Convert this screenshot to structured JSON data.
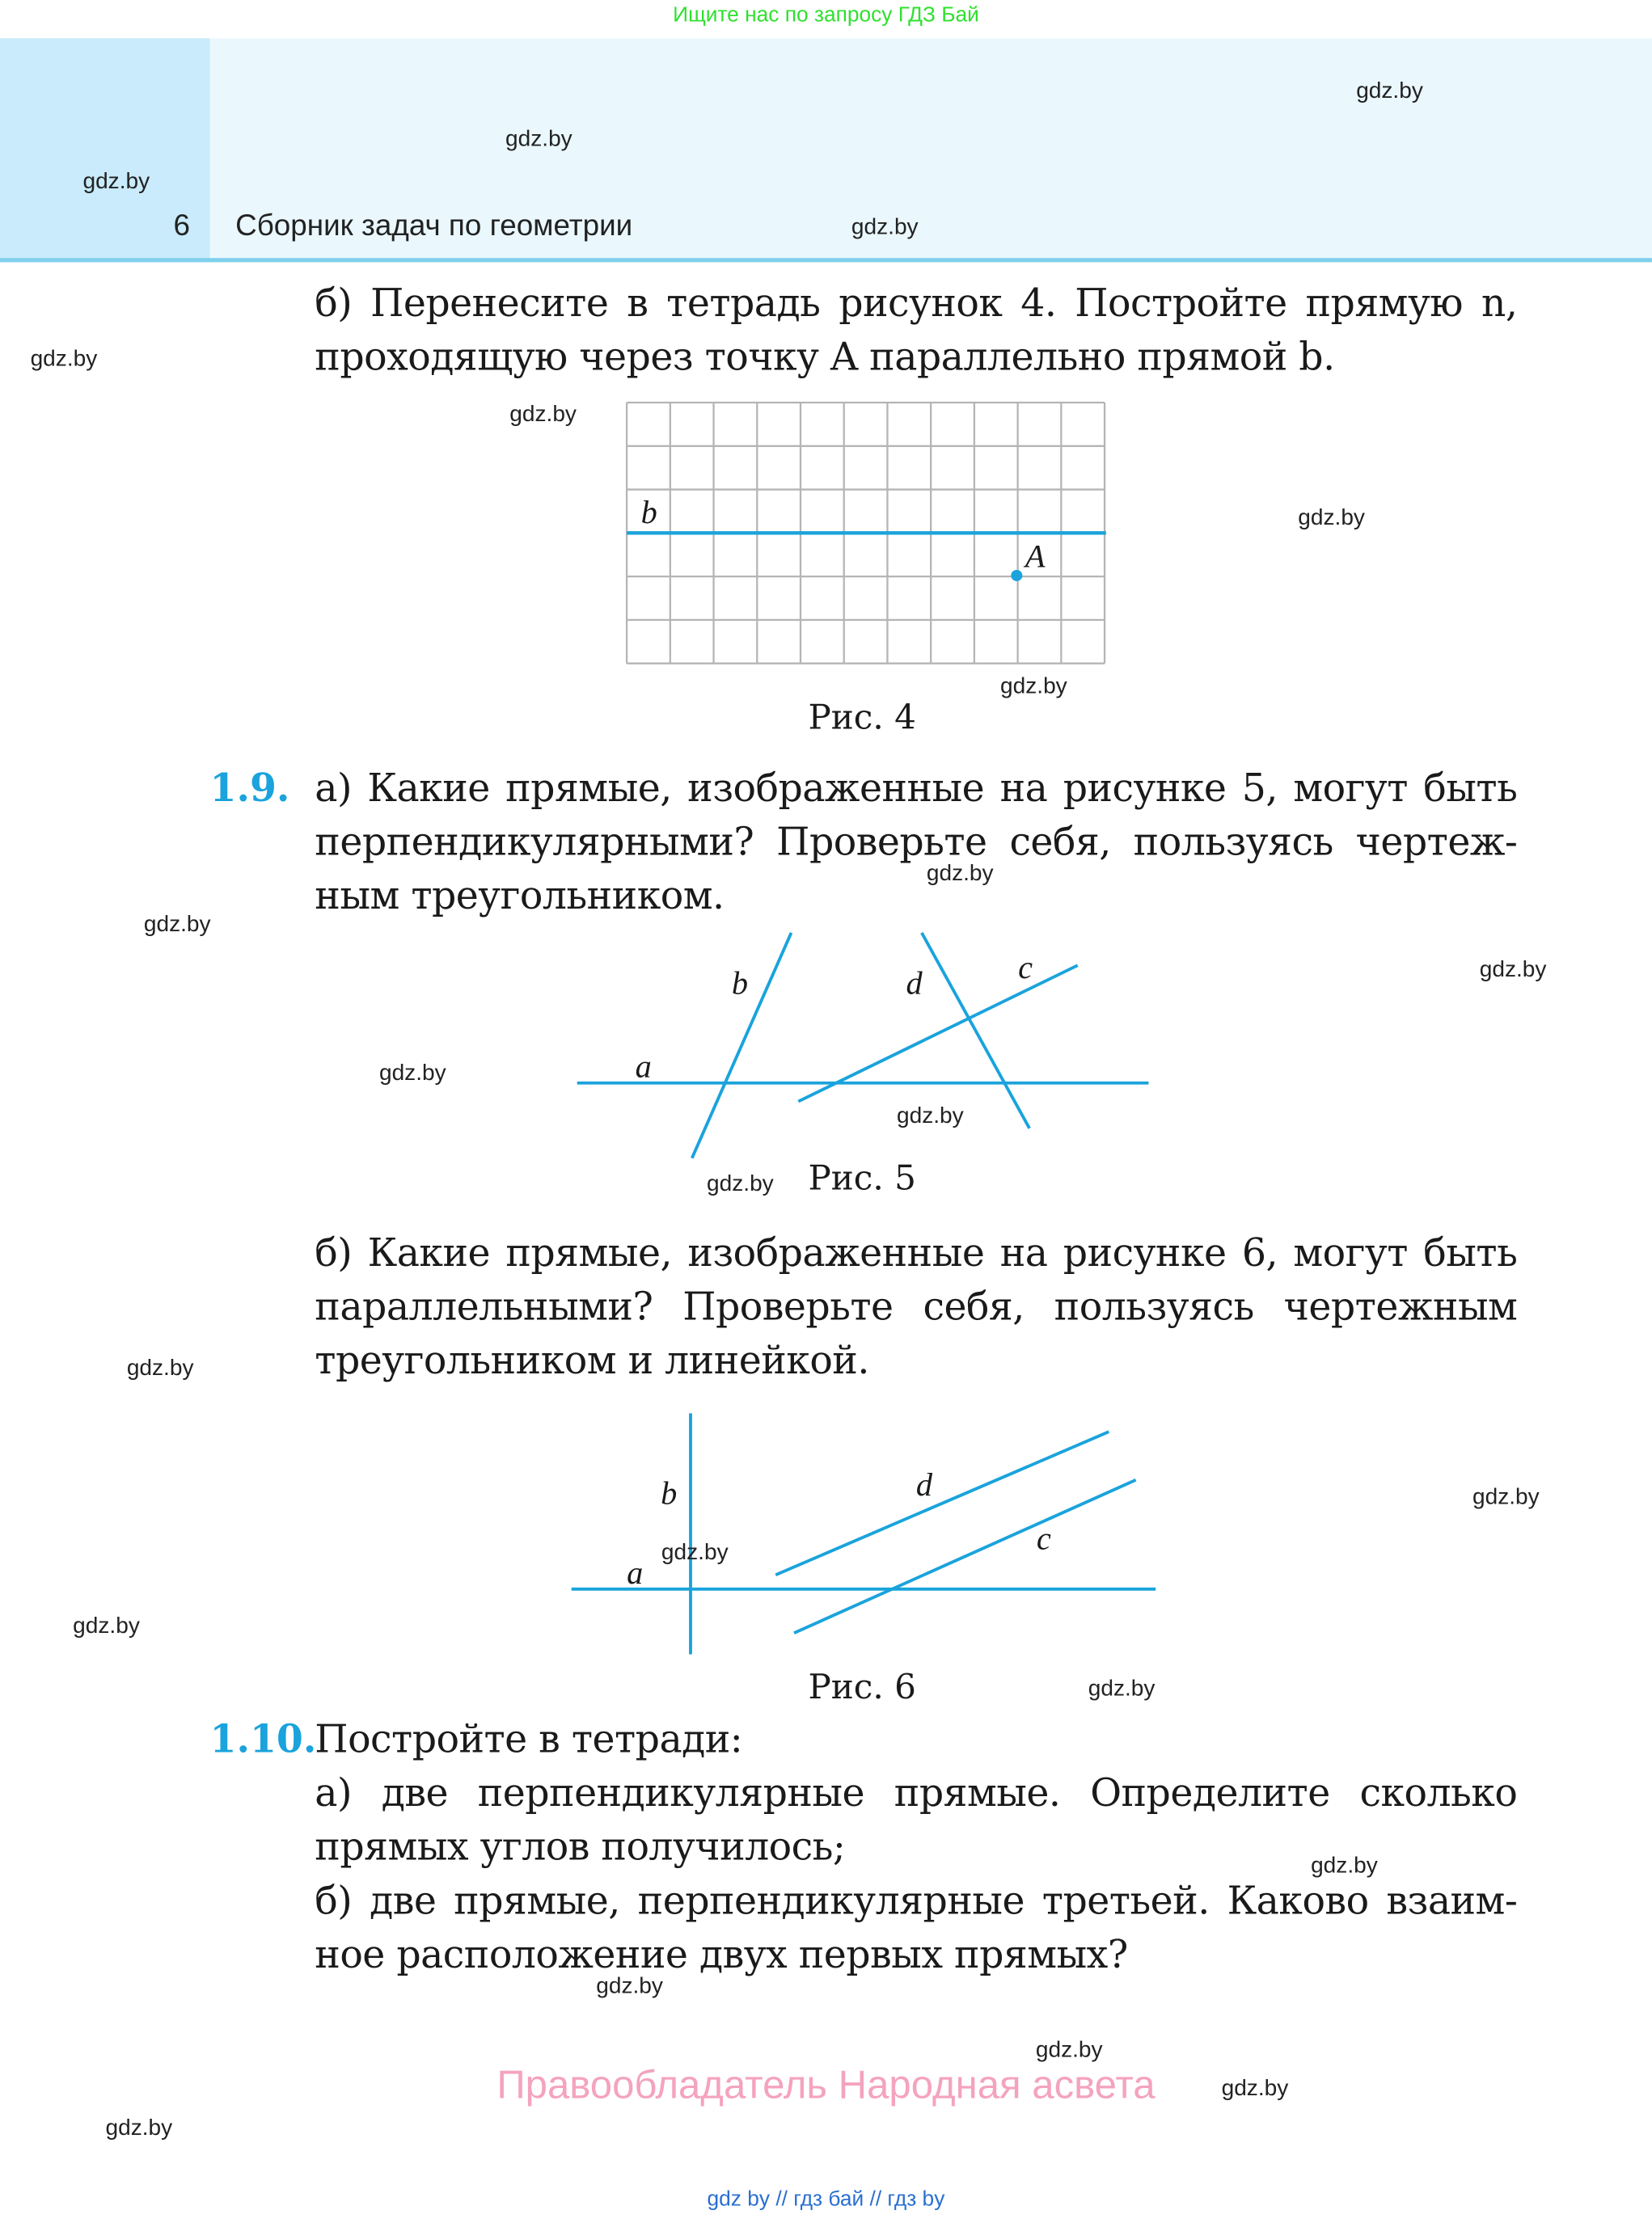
{
  "top_note": "Ищите нас по запросу ГДЗ Бай",
  "header": {
    "page_number": "6",
    "book_title": "Сборник задач по геометрии"
  },
  "watermark": "gdz.by",
  "task_1_8b": {
    "lines": [
      "б) Перенесите в тетрадь рисунок 4. Постройте прямую n,",
      "проходящую через точку A параллельно прямой b."
    ]
  },
  "figure4": {
    "caption": "Рис. 4",
    "line_label": "b",
    "point_label": "A",
    "grid_columns": 11,
    "grid_rows": 6
  },
  "task_1_9": {
    "number": "1.9.",
    "a_lines": [
      "а) Какие прямые, изображенные на рисунке 5, могут быть",
      "перпендикулярными? Проверьте себя, пользуясь чертеж-",
      "ным треугольником."
    ],
    "b_lines": [
      "б) Какие прямые, изображенные на рисунке 6, могут быть",
      "параллельными? Проверьте себя, пользуясь чертежным",
      "треугольником и линейкой."
    ]
  },
  "figure5": {
    "caption": "Рис. 5",
    "labels": {
      "a": "a",
      "b": "b",
      "c": "c",
      "d": "d"
    }
  },
  "figure6": {
    "caption": "Рис. 6",
    "labels": {
      "a": "a",
      "b": "b",
      "c": "c",
      "d": "d"
    }
  },
  "task_1_10": {
    "number": "1.10.",
    "lines": [
      "Постройте в тетради:",
      "а) две перпендикулярные прямые. Определите сколько",
      "прямых углов получилось;",
      "б) две прямые, перпендикулярные третьей. Каково взаим-",
      "ное расположение двух первых прямых?"
    ]
  },
  "copyright": "Правообладатель Народная асвета",
  "footer": "gdz by  //  гдз бай  //  гдз by",
  "colors": {
    "accent": "#1aa3dc",
    "header_bg": "#eaf8fe",
    "header_left": "#c9ebfb",
    "top_note": "#2fe02f",
    "copyright": "#f4a3bf",
    "footer": "#2a6fd0"
  }
}
